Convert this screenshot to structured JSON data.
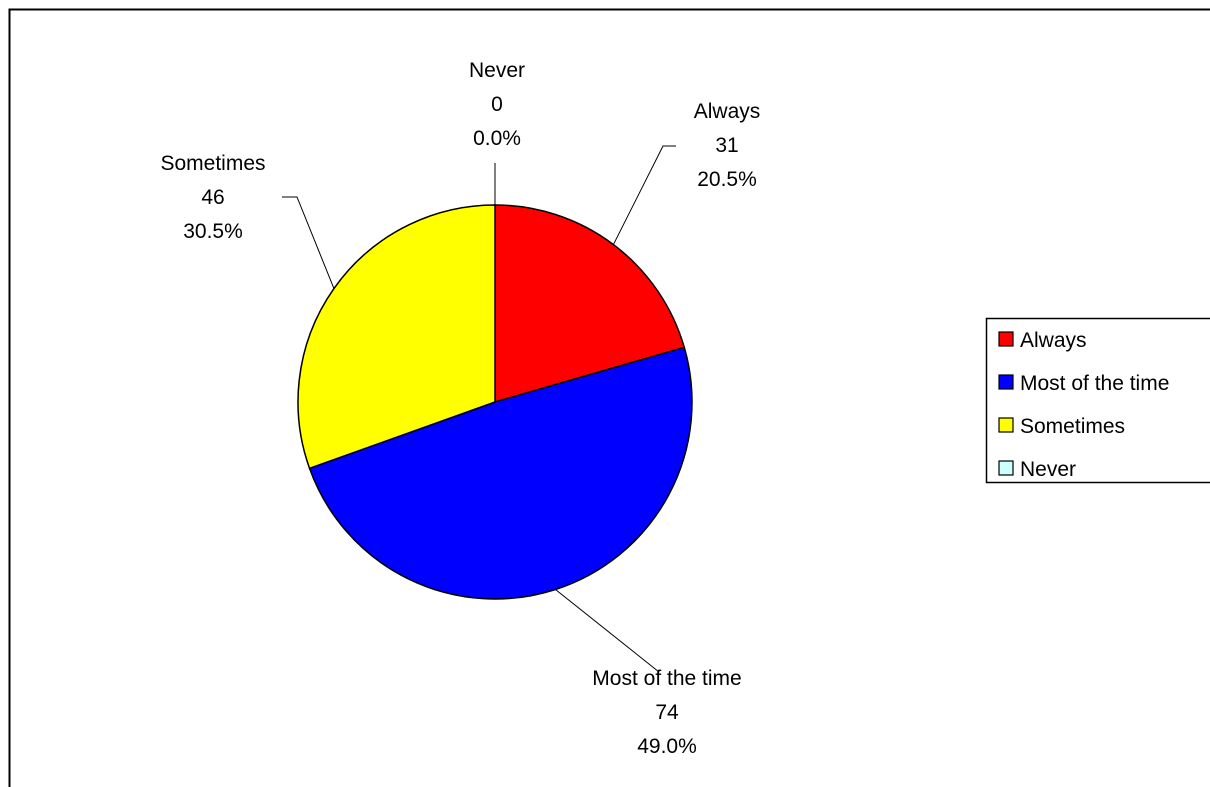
{
  "chart_data": {
    "type": "pie",
    "title": "",
    "categories": [
      "Always",
      "Most of the time",
      "Sometimes",
      "Never"
    ],
    "values": [
      31,
      74,
      46,
      0
    ],
    "percent_labels": [
      "20.5%",
      "49.0%",
      "30.5%",
      "0.0%"
    ],
    "colors": [
      "#ff0000",
      "#0000ff",
      "#ffff00",
      "#ccffff"
    ],
    "start_angle_deg": 0,
    "direction": "clockwise",
    "legend": {
      "position": "right",
      "entries": [
        "Always",
        "Most of the time",
        "Sometimes",
        "Never"
      ]
    }
  }
}
